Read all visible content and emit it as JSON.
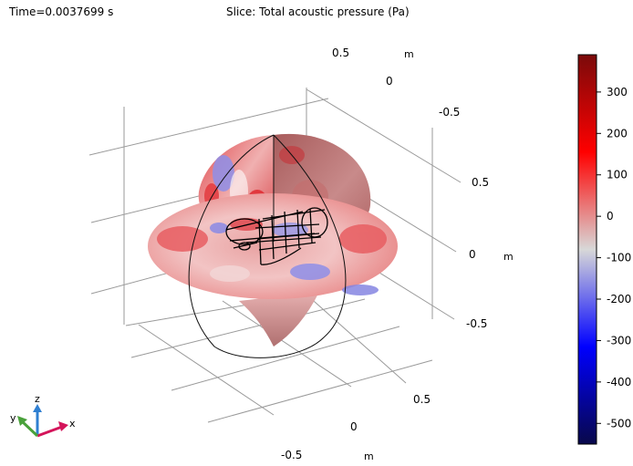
{
  "header": {
    "time_label": "Time=0.0037699 s",
    "title": "Slice: Total acoustic pressure (Pa)"
  },
  "chart_data": {
    "type": "heatmap",
    "title": "Slice: Total acoustic pressure (Pa)",
    "time": "Time=0.0037699 s",
    "colorbar": {
      "min": -550,
      "max": 390,
      "ticks": [
        300,
        200,
        100,
        0,
        -100,
        -200,
        -300,
        -400,
        -500
      ],
      "colormap": [
        "#08084a",
        "#0000ff",
        "#d8d8d8",
        "#ff0000",
        "#7a0a0a"
      ]
    },
    "axes": {
      "x": {
        "unit": "m",
        "ticks": [
          "0.5",
          "0",
          "-0.5"
        ]
      },
      "y": {
        "unit": "m",
        "ticks": [
          "0.5",
          "0",
          "-0.5"
        ]
      },
      "z": {
        "unit": "m",
        "ticks": [
          "0.5",
          "0",
          "-0.5"
        ]
      }
    },
    "triad": {
      "x": "x",
      "y": "y",
      "z": "z"
    }
  },
  "colors": {
    "positive": "#e2363b",
    "negative": "#6a6ae0",
    "neutral": "#eaeaea",
    "axis_x": "#d4145a",
    "axis_y": "#4aa13b",
    "axis_z": "#2f7fd1"
  }
}
